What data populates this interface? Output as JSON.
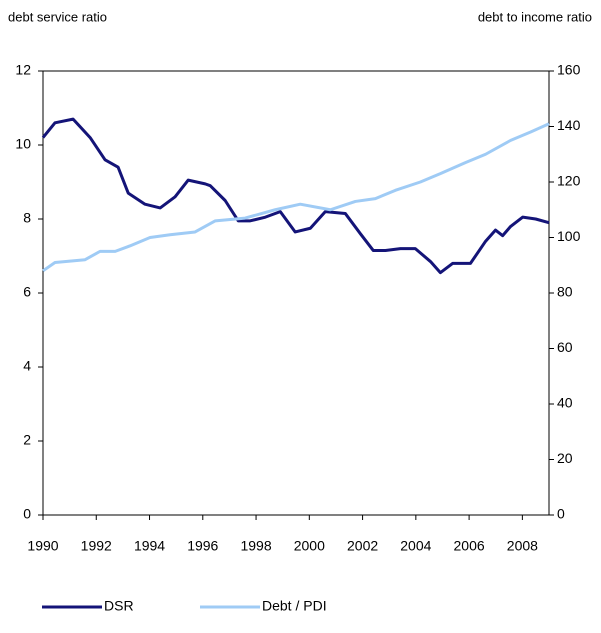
{
  "chart_data": {
    "type": "line",
    "y_label": "debt service ratio",
    "y2_label": "debt to income ratio",
    "xlim": [
      1990,
      2009
    ],
    "xticks": [
      1990,
      1992,
      1994,
      1996,
      1998,
      2000,
      2002,
      2004,
      2006,
      2008
    ],
    "ylim": [
      0,
      12
    ],
    "yticks": [
      0,
      2,
      4,
      6,
      8,
      10,
      12
    ],
    "y2lim": [
      0,
      160
    ],
    "y2ticks": [
      0,
      20,
      40,
      60,
      80,
      100,
      120,
      140,
      160
    ],
    "series": [
      {
        "name": "DSR",
        "color": "#141478",
        "x": [
          1990,
          1990.45,
          1991.13,
          1991.77,
          1992.33,
          1992.82,
          1993.2,
          1993.83,
          1994.4,
          1994.96,
          1995.45,
          1996.09,
          1996.28,
          1996.84,
          1997.33,
          1997.78,
          1998.35,
          1998.91,
          1999.47,
          2000.04,
          2000.6,
          2001.35,
          2001.92,
          2002.4,
          2002.86,
          2003.42,
          2003.98,
          2004.55,
          2004.92,
          2005.38,
          2006.05,
          2006.62,
          2006.99,
          2007.26,
          2007.56,
          2008.01,
          2008.5,
          2009
        ],
        "values": [
          10.2,
          10.6,
          10.7,
          10.2,
          9.6,
          9.4,
          8.7,
          8.4,
          8.3,
          8.6,
          9.05,
          8.95,
          8.9,
          8.5,
          7.95,
          7.95,
          8.05,
          8.2,
          7.65,
          7.75,
          8.2,
          8.15,
          7.6,
          7.15,
          7.15,
          7.2,
          7.2,
          6.85,
          6.55,
          6.8,
          6.8,
          7.4,
          7.7,
          7.55,
          7.8,
          8.05,
          8.0,
          7.9
        ]
      },
      {
        "name": "Debt / PDI",
        "color": "#9fcbf5",
        "axis": "y2",
        "x": [
          1990,
          1990.45,
          1991.58,
          1992.14,
          1992.71,
          1993.27,
          1994.02,
          1994.77,
          1995.71,
          1996.47,
          1997.59,
          1998.72,
          1999.66,
          2000.79,
          2001.73,
          2002.48,
          2003.23,
          2004.17,
          2004.92,
          2005.86,
          2006.62,
          2007.56,
          2008.31,
          2009
        ],
        "values": [
          88,
          91,
          92,
          95,
          95,
          97,
          100,
          101,
          102,
          106,
          107,
          110,
          112,
          110,
          113,
          114,
          117,
          120,
          123,
          127,
          130,
          135,
          138,
          141
        ]
      }
    ]
  }
}
